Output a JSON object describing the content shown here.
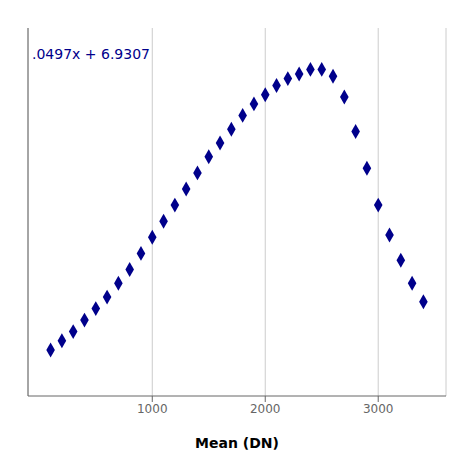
{
  "chart_data": {
    "type": "scatter",
    "annotation": ".0497x + 6.9307",
    "x_label": "Mean (DN)",
    "x": [
      100,
      200,
      300,
      400,
      500,
      600,
      700,
      800,
      900,
      1000,
      1100,
      1200,
      1300,
      1400,
      1500,
      1600,
      1700,
      1800,
      1900,
      2000,
      2100,
      2200,
      2300,
      2400,
      2500,
      2600,
      2700,
      2800,
      2900,
      3000,
      3100,
      3200,
      3300,
      3400
    ],
    "values": [
      5,
      9,
      13,
      18,
      23,
      28,
      34,
      40,
      47,
      54,
      61,
      68,
      75,
      82,
      89,
      95,
      101,
      107,
      112,
      116,
      120,
      123,
      125,
      127,
      127,
      124,
      115,
      100,
      84,
      68,
      55,
      44,
      34,
      26
    ],
    "color": "#00008B",
    "marker": "diamond",
    "xlim": [
      -100,
      3600
    ],
    "ylim": [
      -15,
      145
    ],
    "xticks": [
      1000,
      2000,
      3000
    ],
    "grid": true,
    "tick_labels": "x"
  }
}
